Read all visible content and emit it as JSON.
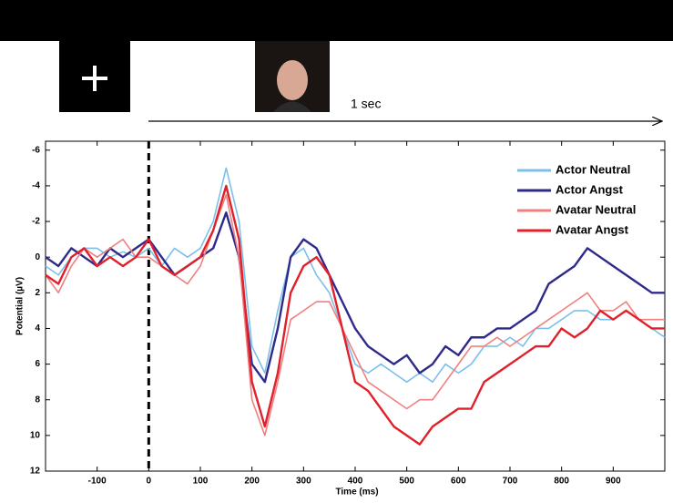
{
  "chart_data": {
    "type": "line",
    "stimulus_label": "1 sec",
    "x_label": "Time (ms)",
    "y_label": "Potential (µV)",
    "x": [
      -200,
      -175,
      -150,
      -125,
      -100,
      -75,
      -50,
      -25,
      0,
      25,
      50,
      75,
      100,
      125,
      150,
      175,
      200,
      225,
      250,
      275,
      300,
      325,
      350,
      375,
      400,
      425,
      450,
      475,
      500,
      525,
      550,
      575,
      600,
      625,
      650,
      675,
      700,
      725,
      750,
      775,
      800,
      825,
      850,
      875,
      900,
      925,
      950,
      975,
      1000
    ],
    "series": [
      {
        "name": "Actor Neutral",
        "color": "#7cc0ea",
        "values": [
          0.5,
          1,
          0,
          -0.5,
          -0.5,
          0,
          -0.3,
          0,
          -0.5,
          0.5,
          -0.5,
          0,
          -0.5,
          -2,
          -5,
          -2,
          5,
          6.5,
          3,
          0,
          -0.5,
          1,
          2,
          4,
          6,
          6.5,
          6,
          6.5,
          7,
          6.5,
          7,
          6,
          6.5,
          6,
          5,
          5,
          4.5,
          5,
          4,
          4,
          3.5,
          3,
          3,
          3.5,
          3.5,
          3,
          3.5,
          4,
          4.5
        ]
      },
      {
        "name": "Actor Angst",
        "color": "#2e2a8a",
        "values": [
          0,
          0.5,
          -0.5,
          0,
          0.5,
          -0.5,
          0,
          -0.5,
          -1,
          0,
          1,
          0.5,
          0,
          -0.5,
          -2.5,
          0,
          6,
          7,
          4,
          0,
          -1,
          -0.5,
          1,
          2.5,
          4,
          5,
          5.5,
          6,
          5.5,
          6.5,
          6,
          5,
          5.5,
          4.5,
          4.5,
          4,
          4,
          3.5,
          3,
          1.5,
          1,
          0.5,
          -0.5,
          0,
          0.5,
          1,
          1.5,
          2,
          2
        ]
      },
      {
        "name": "Avatar Neutral",
        "color": "#f08080",
        "values": [
          1,
          2,
          0.5,
          -0.5,
          0,
          -0.5,
          -1,
          0,
          0,
          0.5,
          1,
          1.5,
          0.5,
          -1.5,
          -3.5,
          0,
          8,
          10,
          7,
          3.5,
          3,
          2.5,
          2.5,
          4,
          5.5,
          7,
          7.5,
          8,
          8.5,
          8,
          8,
          7,
          6,
          5,
          5,
          4.5,
          5,
          4.5,
          4,
          3.5,
          3,
          2.5,
          2,
          3,
          3,
          2.5,
          3.5,
          3.5,
          3.5
        ]
      },
      {
        "name": "Avatar Angst",
        "color": "#e0202a",
        "values": [
          1,
          1.5,
          0,
          -0.5,
          0.5,
          0,
          0.5,
          0,
          -1,
          0.5,
          1,
          0.5,
          0,
          -1.5,
          -4,
          -1,
          7,
          9.5,
          6.5,
          2,
          0.5,
          0,
          1,
          4,
          7,
          7.5,
          8.5,
          9.5,
          10,
          10.5,
          9.5,
          9,
          8.5,
          8.5,
          7,
          6.5,
          6,
          5.5,
          5,
          5,
          4,
          4.5,
          4,
          3,
          3.5,
          3,
          3.5,
          4,
          4
        ]
      }
    ],
    "xlim": [
      -200,
      1000
    ],
    "xticks": [
      -100,
      0,
      100,
      200,
      300,
      400,
      500,
      600,
      700,
      800,
      900
    ],
    "ylim": [
      12,
      -6.5
    ],
    "yticks": [
      -6,
      -4,
      -2,
      0,
      2,
      4,
      6,
      8,
      10,
      12
    ],
    "onset_x": 0,
    "legend": "upper right"
  }
}
